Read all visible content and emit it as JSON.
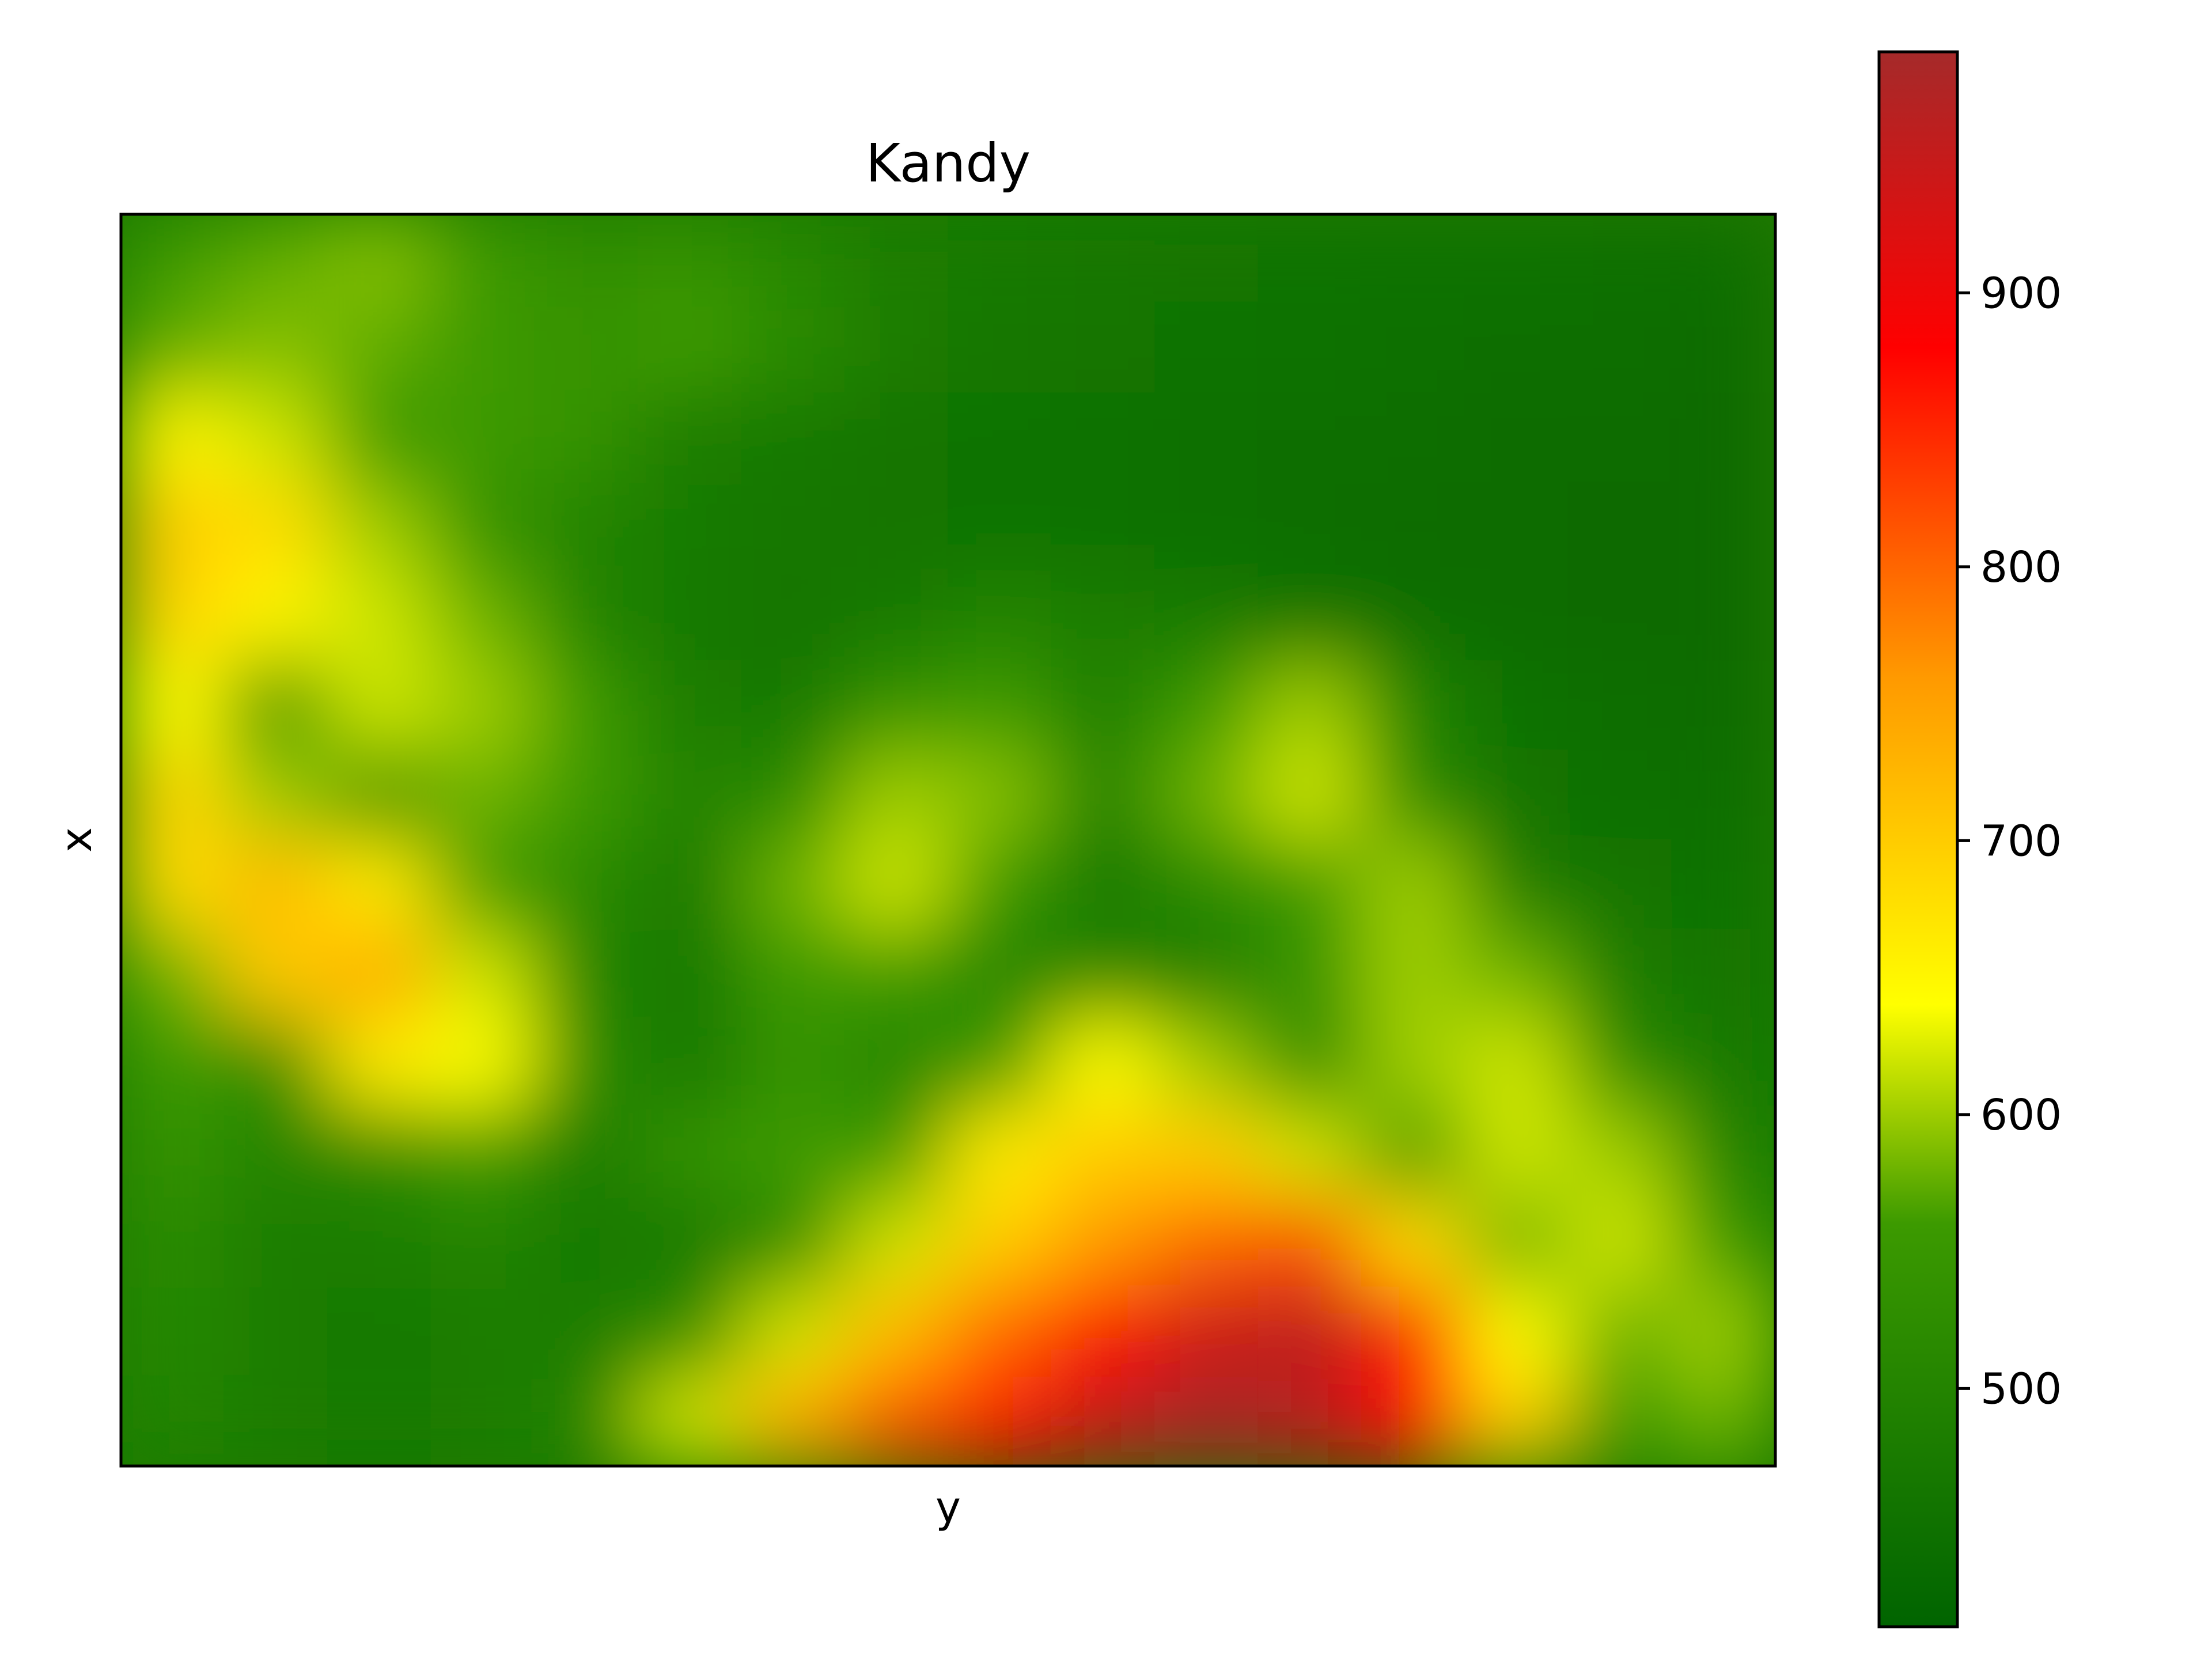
{
  "chart_data": {
    "type": "heatmap",
    "title": "Kandy",
    "xlabel": "y",
    "ylabel": "x",
    "x_ticks": [],
    "y_ticks": [],
    "colorbar": {
      "range": [
        413,
        988
      ],
      "ticks": [
        500,
        600,
        700,
        800,
        900
      ],
      "tick_labels": [
        "500",
        "600",
        "700",
        "800",
        "900"
      ],
      "colormap_stops": [
        {
          "value": 413,
          "color": "#006400"
        },
        {
          "value": 560,
          "color": "#3c9a00"
        },
        {
          "value": 640,
          "color": "#ffff00"
        },
        {
          "value": 760,
          "color": "#ff9900"
        },
        {
          "value": 880,
          "color": "#ff0000"
        },
        {
          "value": 988,
          "color": "#a52a2a"
        }
      ]
    },
    "value_grid": {
      "rows_note": "elevation estimate, top row first",
      "values": [
        [
          560,
          575,
          590,
          560,
          530,
          540,
          510,
          480,
          470,
          465,
          460,
          455,
          450,
          450,
          445,
          440
        ],
        [
          575,
          590,
          575,
          560,
          540,
          560,
          520,
          480,
          465,
          460,
          455,
          450,
          445,
          440,
          440,
          435
        ],
        [
          650,
          620,
          560,
          560,
          540,
          480,
          470,
          460,
          455,
          450,
          445,
          440,
          440,
          435,
          435,
          430
        ],
        [
          700,
          680,
          600,
          540,
          500,
          475,
          465,
          460,
          455,
          450,
          445,
          440,
          435,
          435,
          430,
          430
        ],
        [
          690,
          650,
          620,
          580,
          500,
          470,
          460,
          470,
          500,
          480,
          470,
          450,
          440,
          435,
          430,
          430
        ],
        [
          640,
          540,
          620,
          600,
          560,
          480,
          470,
          540,
          560,
          490,
          560,
          600,
          500,
          450,
          440,
          435
        ],
        [
          690,
          600,
          540,
          580,
          560,
          500,
          520,
          600,
          590,
          500,
          580,
          620,
          520,
          460,
          445,
          440
        ],
        [
          680,
          720,
          660,
          560,
          520,
          470,
          580,
          620,
          560,
          470,
          520,
          560,
          600,
          480,
          460,
          450
        ],
        [
          580,
          700,
          740,
          620,
          500,
          470,
          560,
          560,
          500,
          500,
          480,
          540,
          600,
          580,
          480,
          460
        ],
        [
          560,
          520,
          660,
          640,
          520,
          470,
          540,
          500,
          560,
          640,
          600,
          520,
          600,
          620,
          520,
          470
        ],
        [
          540,
          500,
          520,
          560,
          480,
          540,
          560,
          560,
          660,
          700,
          700,
          620,
          560,
          620,
          600,
          500
        ],
        [
          520,
          480,
          480,
          500,
          470,
          470,
          520,
          620,
          700,
          760,
          800,
          820,
          680,
          580,
          620,
          560
        ],
        [
          510,
          480,
          470,
          480,
          480,
          520,
          620,
          720,
          800,
          880,
          940,
          960,
          860,
          640,
          580,
          600
        ],
        [
          500,
          480,
          470,
          480,
          500,
          620,
          740,
          820,
          880,
          950,
          985,
          960,
          880,
          700,
          560,
          580
        ]
      ]
    }
  }
}
